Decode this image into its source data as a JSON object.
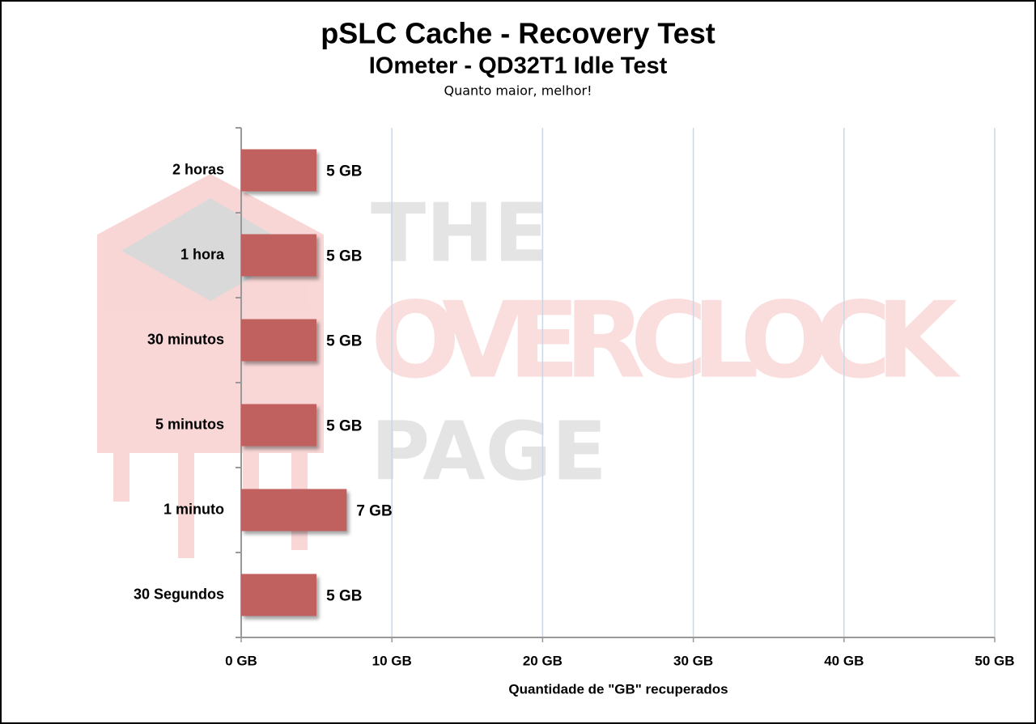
{
  "chart_data": {
    "type": "hbar",
    "title": "pSLC Cache - Recovery Test",
    "subtitle": "IOmeter - QD32T1 Idle Test",
    "note": "Quanto maior, melhor!",
    "xlabel": "Quantidade de \"GB\" recuperados",
    "watermark": [
      "THE",
      "OVERCLOCK",
      "PAGE"
    ],
    "categories": [
      "2 horas",
      "1 hora",
      "30 minutos",
      "5 minutos",
      "1 minuto",
      "30 Segundos"
    ],
    "values": [
      5,
      5,
      5,
      5,
      7,
      5
    ],
    "value_labels": [
      "5 GB",
      "5 GB",
      "5 GB",
      "5 GB",
      "7 GB",
      "5 GB"
    ],
    "color": "#c0605f",
    "xlim": [
      0,
      50
    ],
    "xticks": [
      {
        "value": 0,
        "label": "0 GB"
      },
      {
        "value": 10,
        "label": "10 GB"
      },
      {
        "value": 20,
        "label": "20 GB"
      },
      {
        "value": 30,
        "label": "30 GB"
      },
      {
        "value": 40,
        "label": "40 GB"
      },
      {
        "value": 50,
        "label": "50 GB"
      }
    ],
    "grid": true
  }
}
